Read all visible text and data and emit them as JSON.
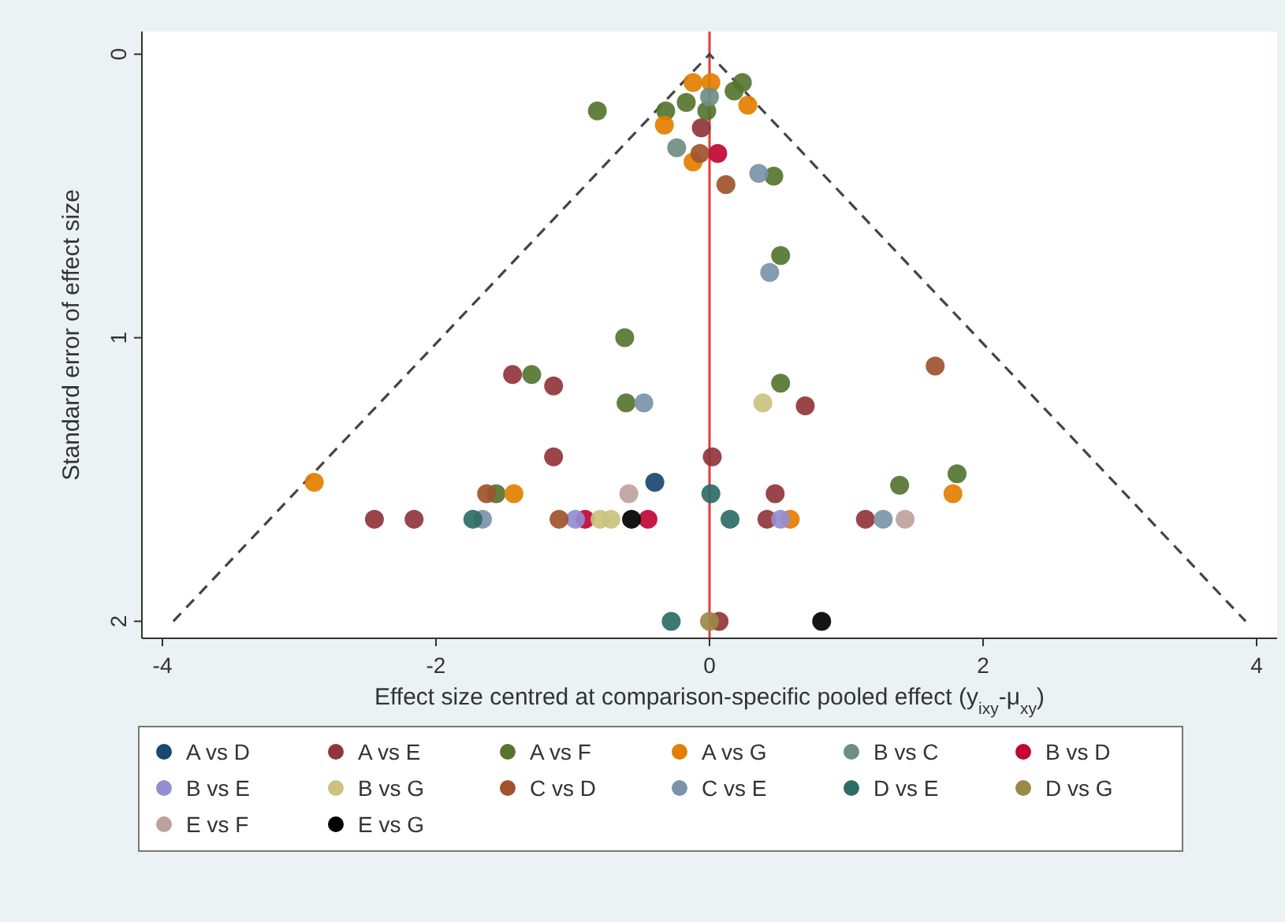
{
  "chart_data": {
    "type": "scatter",
    "xlabel": "Effect size centred at comparison-specific pooled effect (y$_{ixy}$-μ$_{xy}$)",
    "ylabel": "Standard error of effect size",
    "xlim": [
      -4.15,
      4.15
    ],
    "xticks": [
      -4,
      -2,
      0,
      2,
      4
    ],
    "ylim": [
      2.06,
      -0.08
    ],
    "yticks": [
      0,
      1,
      2
    ],
    "grid": false,
    "legend": "bottom",
    "marker": "circle",
    "ref_lines": [
      {
        "axis": "x",
        "value": 0,
        "color": "#e03c3c"
      }
    ],
    "series": [
      {
        "type": "line",
        "color": "#444444",
        "line_style": "dashed",
        "marker": "none",
        "x": [
          -3.92,
          0,
          3.92
        ],
        "values": [
          2,
          0,
          2
        ]
      },
      {
        "name": "A vs D",
        "color": "#1a476f",
        "x": [
          -0.4
        ],
        "values": [
          1.51
        ]
      },
      {
        "name": "A vs E",
        "color": "#90353b",
        "x": [
          -0.06,
          -1.44,
          -1.14,
          -1.14,
          -2.45,
          -2.16,
          0.7,
          0.02,
          0.48,
          0.42,
          1.14,
          0.07
        ],
        "values": [
          0.26,
          1.13,
          1.17,
          1.42,
          1.64,
          1.64,
          1.24,
          1.42,
          1.55,
          1.64,
          1.64,
          2.0
        ]
      },
      {
        "name": "A vs F",
        "color": "#55752f",
        "x": [
          -0.82,
          -0.32,
          -0.17,
          -0.02,
          0.24,
          0.18,
          0.47,
          0.52,
          -0.62,
          -1.3,
          -0.61,
          -1.56,
          0.52,
          1.39,
          1.81
        ],
        "values": [
          0.2,
          0.2,
          0.17,
          0.2,
          0.1,
          0.13,
          0.43,
          0.71,
          1.0,
          1.13,
          1.23,
          1.55,
          1.16,
          1.52,
          1.48
        ]
      },
      {
        "name": "A vs G",
        "color": "#e37e00",
        "x": [
          -0.12,
          0.01,
          0.28,
          -0.33,
          -0.12,
          -2.89,
          -1.43,
          1.78,
          0.59
        ],
        "values": [
          0.1,
          0.1,
          0.18,
          0.25,
          0.38,
          1.51,
          1.55,
          1.55,
          1.64
        ]
      },
      {
        "name": "B vs C",
        "color": "#6e8e84",
        "x": [
          0.0,
          -0.24
        ],
        "values": [
          0.15,
          0.33
        ]
      },
      {
        "name": "B vs D",
        "color": "#c10534",
        "x": [
          0.06,
          -0.91,
          -0.45
        ],
        "values": [
          0.35,
          1.64,
          1.64
        ]
      },
      {
        "name": "B vs E",
        "color": "#938dd2",
        "x": [
          -0.98,
          0.52
        ],
        "values": [
          1.64,
          1.64
        ]
      },
      {
        "name": "B vs G",
        "color": "#cac27e",
        "x": [
          -0.8,
          -0.72,
          0.39
        ],
        "values": [
          1.64,
          1.64,
          1.23
        ]
      },
      {
        "name": "C vs D",
        "color": "#a0522d",
        "x": [
          -0.07,
          0.12,
          -1.63,
          -1.1,
          1.65
        ],
        "values": [
          0.35,
          0.46,
          1.55,
          1.64,
          1.1
        ]
      },
      {
        "name": "C vs E",
        "color": "#7b92a8",
        "x": [
          0.36,
          0.44,
          -0.48,
          -1.66,
          1.27
        ],
        "values": [
          0.42,
          0.77,
          1.23,
          1.64,
          1.64
        ]
      },
      {
        "name": "D vs E",
        "color": "#2d6d66",
        "x": [
          -1.73,
          -0.28,
          0.01,
          0.15
        ],
        "values": [
          1.64,
          2.0,
          1.55,
          1.64
        ]
      },
      {
        "name": "D vs G",
        "color": "#9c8847",
        "x": [
          0.0
        ],
        "values": [
          2.0
        ]
      },
      {
        "name": "E vs F",
        "color": "#bfa19c",
        "x": [
          -0.59,
          1.43
        ],
        "values": [
          1.55,
          1.64
        ]
      },
      {
        "name": "E vs G",
        "color": "#000000",
        "x": [
          -0.57,
          0.82
        ],
        "values": [
          1.64,
          2.0
        ]
      }
    ]
  }
}
